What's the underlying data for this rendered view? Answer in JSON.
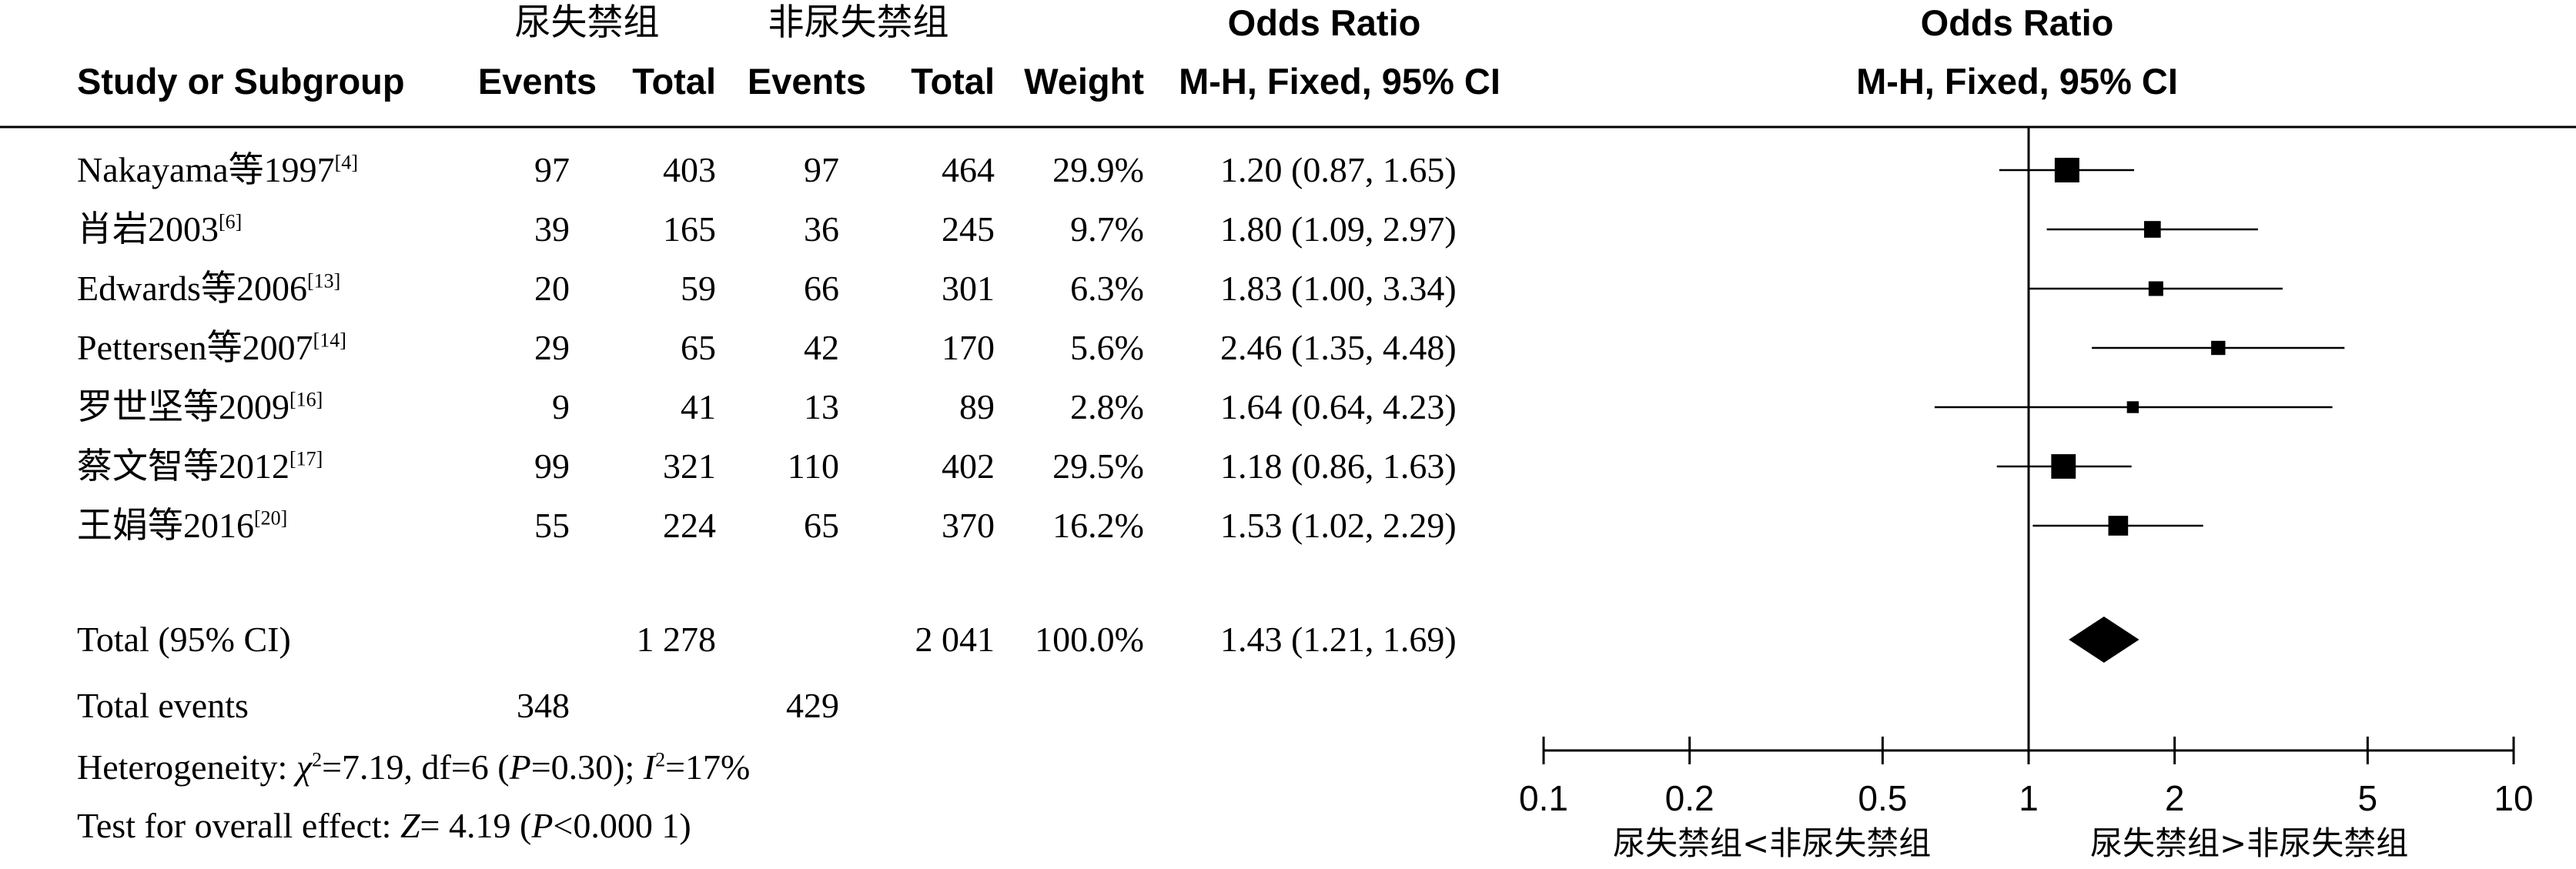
{
  "header": {
    "group1_name": "尿失禁组",
    "group2_name": "非尿失禁组",
    "study_col": "Study or Subgroup",
    "events_label": "Events",
    "total_label": "Total",
    "weight_label": "Weight",
    "or_title": "Odds Ratio",
    "or_method": "M-H, Fixed, 95% CI",
    "plot_title": "Odds Ratio",
    "plot_method": "M-H, Fixed, 95% CI"
  },
  "studies": [
    {
      "name": "Nakayama等1997",
      "ref": "[4]",
      "e1": "97",
      "t1": "403",
      "e2": "97",
      "t2": "464",
      "weight": "29.9%",
      "ci_text": "1.20 (0.87, 1.65)"
    },
    {
      "name": "肖岩2003",
      "ref": "[6]",
      "e1": "39",
      "t1": "165",
      "e2": "36",
      "t2": "245",
      "weight": "9.7%",
      "ci_text": "1.80 (1.09, 2.97)"
    },
    {
      "name": "Edwards等2006",
      "ref": "[13]",
      "e1": "20",
      "t1": "59",
      "e2": "66",
      "t2": "301",
      "weight": "6.3%",
      "ci_text": "1.83 (1.00, 3.34)"
    },
    {
      "name": "Pettersen等2007",
      "ref": "[14]",
      "e1": "29",
      "t1": "65",
      "e2": "42",
      "t2": "170",
      "weight": "5.6%",
      "ci_text": "2.46 (1.35, 4.48)"
    },
    {
      "name": "罗世坚等2009",
      "ref": "[16]",
      "e1": "9",
      "t1": "41",
      "e2": "13",
      "t2": "89",
      "weight": "2.8%",
      "ci_text": "1.64 (0.64, 4.23)"
    },
    {
      "name": "蔡文智等2012",
      "ref": "[17]",
      "e1": "99",
      "t1": "321",
      "e2": "110",
      "t2": "402",
      "weight": "29.5%",
      "ci_text": "1.18 (0.86, 1.63)"
    },
    {
      "name": "王娟等2016",
      "ref": "[20]",
      "e1": "55",
      "t1": "224",
      "e2": "65",
      "t2": "370",
      "weight": "16.2%",
      "ci_text": "1.53 (1.02, 2.29)"
    }
  ],
  "total": {
    "label": "Total (95% CI)",
    "t1": "1 278",
    "t2": "2 041",
    "weight": "100.0%",
    "ci_text": "1.43 (1.21, 1.69)"
  },
  "total_events": {
    "label": "Total events",
    "e1": "348",
    "e2": "429"
  },
  "heterogeneity": {
    "prefix": "Heterogeneity: ",
    "chi_symbol": "χ",
    "chi_rest": "=7.19, df=6 (",
    "p_symbol": "P",
    "p_rest": "=0.30); ",
    "i_symbol": "I",
    "i_rest": "=17%"
  },
  "overall_effect": {
    "prefix": "Test for overall effect: ",
    "z_symbol": "Z",
    "z_rest": "= 4.19 (",
    "p_symbol": "P",
    "p_rest": "<0.000 1)"
  },
  "chart_data": {
    "type": "forest",
    "scale": "log",
    "xlim": [
      0.1,
      10
    ],
    "ticks": [
      0.1,
      0.2,
      0.5,
      1,
      2,
      5,
      10
    ],
    "tick_labels": [
      "0.1",
      "0.2",
      "0.5",
      "1",
      "2",
      "5",
      "10"
    ],
    "null_line": 1,
    "left_favours": "尿失禁组<非尿失禁组",
    "right_favours": "尿失禁组>非尿失禁组",
    "studies": [
      {
        "or": 1.2,
        "lower": 0.87,
        "upper": 1.65,
        "weight": 29.9
      },
      {
        "or": 1.8,
        "lower": 1.09,
        "upper": 2.97,
        "weight": 9.7
      },
      {
        "or": 1.83,
        "lower": 1.0,
        "upper": 3.34,
        "weight": 6.3
      },
      {
        "or": 2.46,
        "lower": 1.35,
        "upper": 4.48,
        "weight": 5.6
      },
      {
        "or": 1.64,
        "lower": 0.64,
        "upper": 4.23,
        "weight": 2.8
      },
      {
        "or": 1.18,
        "lower": 0.86,
        "upper": 1.63,
        "weight": 29.5
      },
      {
        "or": 1.53,
        "lower": 1.02,
        "upper": 2.29,
        "weight": 16.2
      }
    ],
    "pooled": {
      "or": 1.43,
      "lower": 1.21,
      "upper": 1.69
    }
  }
}
